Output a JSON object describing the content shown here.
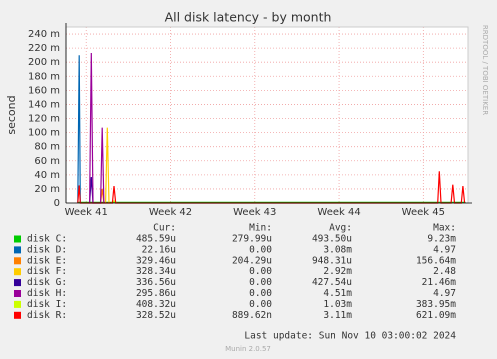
{
  "chart_data": {
    "type": "line",
    "title": "All disk latency - by month",
    "y_label": "second",
    "watermark": "RRDTOOL / TOBI OETIKER",
    "ylim": [
      0,
      0.25
    ],
    "yticks": [
      0,
      {
        "value": 0.02,
        "label": "20 m"
      },
      {
        "value": 0.04,
        "label": "40 m"
      },
      {
        "value": 0.06,
        "label": "60 m"
      },
      {
        "value": 0.08,
        "label": "80 m"
      },
      {
        "value": 0.1,
        "label": "100 m"
      },
      {
        "value": 0.12,
        "label": "120 m"
      },
      {
        "value": 0.14,
        "label": "140 m"
      },
      {
        "value": 0.16,
        "label": "160 m"
      },
      {
        "value": 0.18,
        "label": "180 m"
      },
      {
        "value": 0.2,
        "label": "200 m"
      },
      {
        "value": 0.22,
        "label": "220 m"
      },
      {
        "value": 0.24,
        "label": "240 m"
      }
    ],
    "xlim": [
      40.76,
      45.53
    ],
    "xticks": [
      {
        "value": 41,
        "label": "Week 41"
      },
      {
        "value": 42,
        "label": "Week 42"
      },
      {
        "value": 43,
        "label": "Week 43"
      },
      {
        "value": 44,
        "label": "Week 44"
      },
      {
        "value": 45,
        "label": "Week 45"
      }
    ],
    "grid": true,
    "stats_headers": [
      "Cur:",
      "Min:",
      "Avg:",
      "Max:"
    ],
    "series": [
      {
        "name": "disk C:",
        "color": "#00cc00",
        "x": [
          40.9,
          45.5
        ],
        "values": [
          0.001,
          0.001
        ],
        "stats": [
          "485.59u",
          "279.99u",
          "493.50u",
          "9.23m"
        ]
      },
      {
        "name": "disk D:",
        "color": "#0066b3",
        "x": [
          40.9,
          40.917,
          40.93
        ],
        "values": [
          0,
          0.21,
          0
        ],
        "stats": [
          "22.16u",
          "0.00",
          "3.08m",
          "4.97"
        ]
      },
      {
        "name": "disk E:",
        "color": "#ff8000",
        "x": [
          41.17,
          41.19,
          41.21
        ],
        "values": [
          0,
          0.02,
          0
        ],
        "stats": [
          "329.46u",
          "204.29u",
          "948.31u",
          "156.64m"
        ]
      },
      {
        "name": "disk F:",
        "color": "#ffcc00",
        "x": [
          41.23,
          41.25,
          41.27
        ],
        "values": [
          0,
          0.107,
          0
        ],
        "stats": [
          "328.34u",
          "0.00",
          "2.92m",
          "2.48"
        ]
      },
      {
        "name": "disk G:",
        "color": "#330099",
        "x": [
          41.04,
          41.06,
          41.08
        ],
        "values": [
          0,
          0.037,
          0
        ],
        "stats": [
          "336.56u",
          "0.00",
          "427.54u",
          "21.46m"
        ]
      },
      {
        "name": "disk H:",
        "color": "#990099",
        "x": [
          41.04,
          41.06,
          41.08,
          41.17,
          41.19,
          41.21
        ],
        "values": [
          0,
          0.213,
          0,
          0,
          0.107,
          0
        ],
        "stats": [
          "295.86u",
          "0.00",
          "4.51m",
          "4.97"
        ]
      },
      {
        "name": "disk I:",
        "color": "#ccff00",
        "x": [
          41.3,
          41.33,
          41.36
        ],
        "values": [
          0,
          0.003,
          0
        ],
        "stats": [
          "408.32u",
          "0.00",
          "1.03m",
          "383.95m"
        ]
      },
      {
        "name": "disk R:",
        "color": "#ff0000",
        "x": [
          40.9,
          40.917,
          40.93,
          41.31,
          41.33,
          41.35,
          45.17,
          45.19,
          45.21,
          45.33,
          45.35,
          45.37,
          45.45,
          45.47,
          45.49
        ],
        "values": [
          0,
          0.025,
          0,
          0,
          0.024,
          0,
          0,
          0.045,
          0,
          0,
          0.026,
          0,
          0,
          0.024,
          0
        ],
        "stats": [
          "328.52u",
          "889.62n",
          "3.11m",
          "621.09m"
        ]
      }
    ],
    "last_update": "Last update: Sun Nov 10 03:00:02 2024",
    "footer": "Munin 2.0.57"
  }
}
